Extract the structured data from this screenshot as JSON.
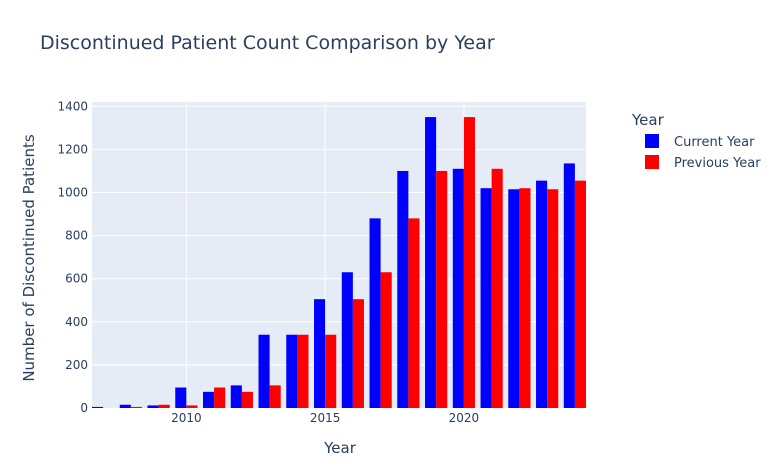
{
  "chart_data": {
    "type": "bar",
    "title": "Discontinued Patient Count Comparison by Year",
    "xlabel": "Year",
    "ylabel": "Number of Discontinued Patients",
    "x": [
      2007,
      2008,
      2009,
      2010,
      2011,
      2012,
      2013,
      2014,
      2015,
      2016,
      2017,
      2018,
      2019,
      2020,
      2021,
      2022,
      2023,
      2024
    ],
    "xlim": [
      2006.6,
      2024.4
    ],
    "ylim": [
      0,
      1420
    ],
    "x_ticks": [
      2010,
      2015,
      2020
    ],
    "y_ticks": [
      0,
      200,
      400,
      600,
      800,
      1000,
      1200,
      1400
    ],
    "grid": true,
    "legend": {
      "title": "Year",
      "position": "right"
    },
    "series": [
      {
        "name": "Current Year",
        "color": "#0000ff",
        "values": [
          5,
          15,
          12,
          95,
          75,
          105,
          340,
          340,
          505,
          630,
          880,
          1100,
          1350,
          1110,
          1020,
          1015,
          1055,
          1135
        ]
      },
      {
        "name": "Previous Year",
        "color": "#ff0000",
        "values": [
          0,
          5,
          15,
          12,
          95,
          75,
          105,
          340,
          340,
          505,
          630,
          880,
          1100,
          1350,
          1110,
          1020,
          1015,
          1055
        ]
      }
    ]
  }
}
